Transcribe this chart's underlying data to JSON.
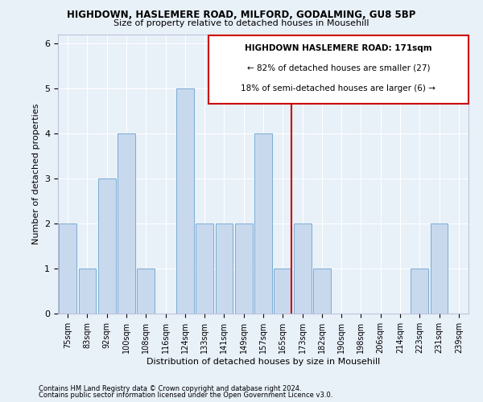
{
  "title1": "HIGHDOWN, HASLEMERE ROAD, MILFORD, GODALMING, GU8 5BP",
  "title2": "Size of property relative to detached houses in Mousehill",
  "xlabel": "Distribution of detached houses by size in Mousehill",
  "ylabel": "Number of detached properties",
  "categories": [
    "75sqm",
    "83sqm",
    "92sqm",
    "100sqm",
    "108sqm",
    "116sqm",
    "124sqm",
    "133sqm",
    "141sqm",
    "149sqm",
    "157sqm",
    "165sqm",
    "173sqm",
    "182sqm",
    "190sqm",
    "198sqm",
    "206sqm",
    "214sqm",
    "223sqm",
    "231sqm",
    "239sqm"
  ],
  "values": [
    2,
    1,
    3,
    4,
    1,
    0,
    5,
    2,
    2,
    2,
    4,
    1,
    2,
    1,
    0,
    0,
    0,
    0,
    1,
    2,
    0
  ],
  "bar_color": "#c8d9ee",
  "bar_edge_color": "#7aacd4",
  "background_color": "#e8f0f8",
  "grid_color": "#ffffff",
  "vline_color": "#cc0000",
  "vline_x_index": 11,
  "annotation_title": "HIGHDOWN HASLEMERE ROAD: 171sqm",
  "annotation_line1": "← 82% of detached houses are smaller (27)",
  "annotation_line2": "18% of semi-detached houses are larger (6) →",
  "annotation_box_color": "#ffffff",
  "annotation_border_color": "#cc0000",
  "ylim": [
    0,
    6.2
  ],
  "yticks": [
    0,
    1,
    2,
    3,
    4,
    5,
    6
  ],
  "footer1": "Contains HM Land Registry data © Crown copyright and database right 2024.",
  "footer2": "Contains public sector information licensed under the Open Government Licence v3.0."
}
